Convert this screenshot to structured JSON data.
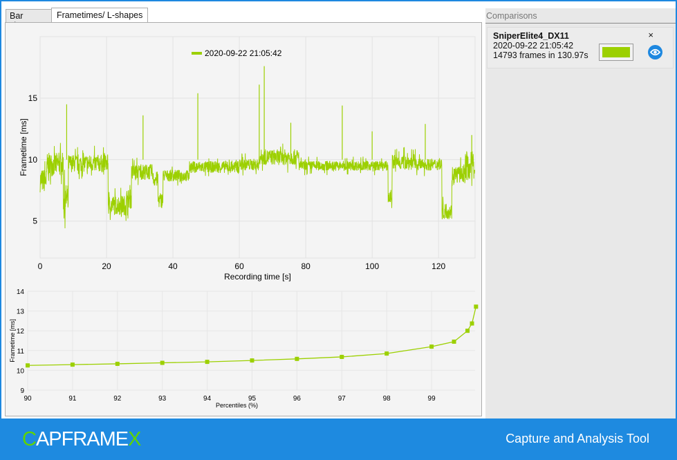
{
  "tabs": [
    {
      "label": "Bar charts"
    },
    {
      "label": "Frametimes/ L-shapes"
    }
  ],
  "comparisons": {
    "title": "Comparisons",
    "items": [
      {
        "name": "SniperElite4_DX11",
        "date": "2020-09-22 21:05:42",
        "frames": "14793 frames in 130.97s",
        "color": "#9cd000",
        "close": "×"
      }
    ]
  },
  "footer": {
    "logo_a": "C",
    "logo_b": "APFRAME",
    "logo_c": "X",
    "tagline": "Capture and Analysis Tool"
  },
  "chart_data": [
    {
      "type": "line",
      "title": "",
      "legend": [
        "2020-09-22 21:05:42"
      ],
      "legend_position": "top-center",
      "xlabel": "Recording time [s]",
      "ylabel": "Frametime [ms]",
      "xlim": [
        0,
        131
      ],
      "ylim": [
        2,
        20
      ],
      "xticks": [
        0,
        20,
        40,
        60,
        80,
        100,
        120
      ],
      "yticks": [
        5,
        10,
        15
      ],
      "grid": true,
      "color": "#9cd000",
      "segments": [
        [
          0,
          8.3,
          1.2
        ],
        [
          2,
          9.6,
          1.2
        ],
        [
          7,
          6.8,
          1.5
        ],
        [
          8.5,
          9.7,
          0.9
        ],
        [
          20.5,
          6.3,
          1.0
        ],
        [
          26,
          6.8,
          1.0
        ],
        [
          27.5,
          9.0,
          0.8
        ],
        [
          34,
          8.4,
          0.8
        ],
        [
          35.5,
          6.7,
          0.8
        ],
        [
          37,
          8.7,
          0.6
        ],
        [
          45,
          9.4,
          0.6
        ],
        [
          60,
          9.6,
          0.6
        ],
        [
          66,
          10.2,
          0.8
        ],
        [
          78,
          9.5,
          0.5
        ],
        [
          104.8,
          6.9,
          0.6
        ],
        [
          106,
          9.8,
          0.8
        ],
        [
          113,
          9.6,
          0.6
        ],
        [
          121,
          5.8,
          0.8
        ],
        [
          124,
          8.8,
          0.9
        ],
        [
          128,
          9.5,
          1.5
        ]
      ],
      "spikes": [
        [
          8,
          14.5
        ],
        [
          31,
          13.6
        ],
        [
          47.5,
          15.4
        ],
        [
          66,
          16.1
        ],
        [
          67.5,
          17.6
        ],
        [
          75.5,
          13.0
        ],
        [
          91,
          14.4
        ],
        [
          100,
          12.3
        ],
        [
          116,
          12.9
        ],
        [
          130,
          12.0
        ]
      ]
    },
    {
      "type": "line",
      "xlabel": "Percentiles (%)",
      "ylabel": "Frametime [ms]",
      "xlim": [
        90,
        100
      ],
      "ylim": [
        9,
        14
      ],
      "xticks": [
        90,
        91,
        92,
        93,
        94,
        95,
        96,
        97,
        98,
        99
      ],
      "yticks": [
        9,
        10,
        11,
        12,
        13,
        14
      ],
      "grid": true,
      "color": "#9cd000",
      "x": [
        90,
        91,
        92,
        93,
        94,
        95,
        96,
        97,
        98,
        99,
        99.5,
        99.8,
        99.9,
        99.99
      ],
      "y": [
        10.25,
        10.29,
        10.33,
        10.38,
        10.43,
        10.5,
        10.58,
        10.68,
        10.85,
        11.2,
        11.45,
        12.0,
        12.37,
        13.22
      ]
    }
  ]
}
